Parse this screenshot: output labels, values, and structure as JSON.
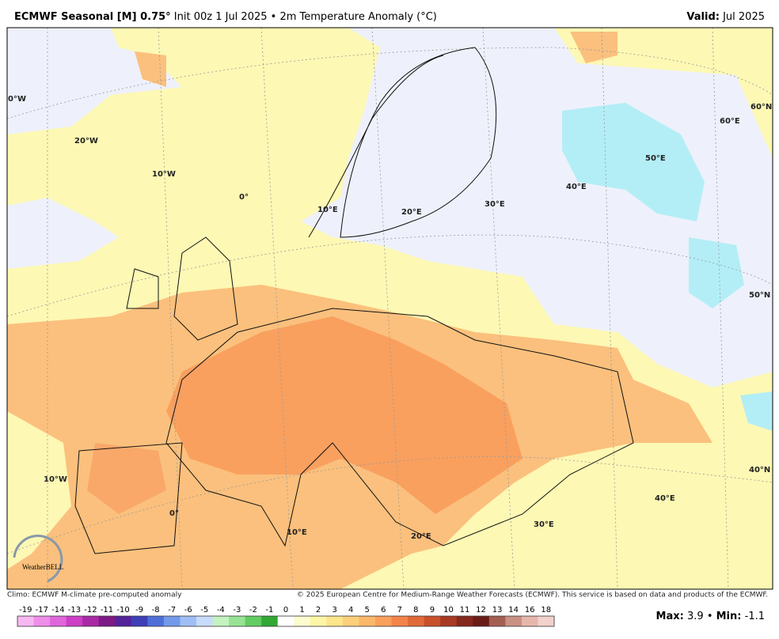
{
  "header": {
    "title_main": "ECMWF Seasonal [M] 0.75°",
    "title_rest": "Init 00z 1 Jul 2025 • 2m Temperature Anomaly (°C)",
    "valid_label": "Valid:",
    "valid_value": "Jul 2025"
  },
  "map": {
    "labels": [
      "0°W",
      "20°W",
      "10°W",
      "0°",
      "10°E",
      "20°E",
      "30°E",
      "40°E",
      "50°E",
      "60°E",
      "60°N",
      "50°N",
      "40°N",
      "10°W",
      "0°",
      "10°E",
      "20°E",
      "30°E",
      "40°E"
    ],
    "logo": "WeatherBELL"
  },
  "footer": {
    "climo": "Climo: ECMWF M-climate pre-computed anomaly",
    "copyright": "© 2025 European Centre for Medium-Range Weather Forecasts (ECMWF). This service is based on data and products of the ECMWF."
  },
  "colorbar": {
    "labels": [
      -19,
      -17,
      -14,
      -13,
      -12,
      -11,
      -10,
      -9,
      -8,
      -7,
      -6,
      -5,
      -4,
      -3,
      -2,
      -1,
      0,
      1,
      2,
      3,
      4,
      5,
      6,
      7,
      8,
      9,
      10,
      11,
      12,
      13,
      14,
      16,
      18
    ],
    "colors": [
      "#f7b8f2",
      "#ee8fe9",
      "#e066dc",
      "#cc3fc6",
      "#a82aa4",
      "#7e1a85",
      "#55239a",
      "#3f3fb8",
      "#4f6fd8",
      "#739aea",
      "#9fbef5",
      "#c7dcfb",
      "#c4f2c0",
      "#98e394",
      "#63cc63",
      "#33a834",
      "#ffffff",
      "#fdfbd0",
      "#fdf6a6",
      "#fde58c",
      "#fccf7a",
      "#fbb86a",
      "#f9a05c",
      "#f3844a",
      "#e26a3a",
      "#c8502b",
      "#a83a24",
      "#85281e",
      "#6a1d18",
      "#a35f52",
      "#c99084",
      "#e6b6ac",
      "#f3d2cc"
    ]
  },
  "stats": {
    "max_label": "Max:",
    "max": 3.9,
    "sep": "•",
    "min_label": "Min:",
    "min": -1.1
  }
}
